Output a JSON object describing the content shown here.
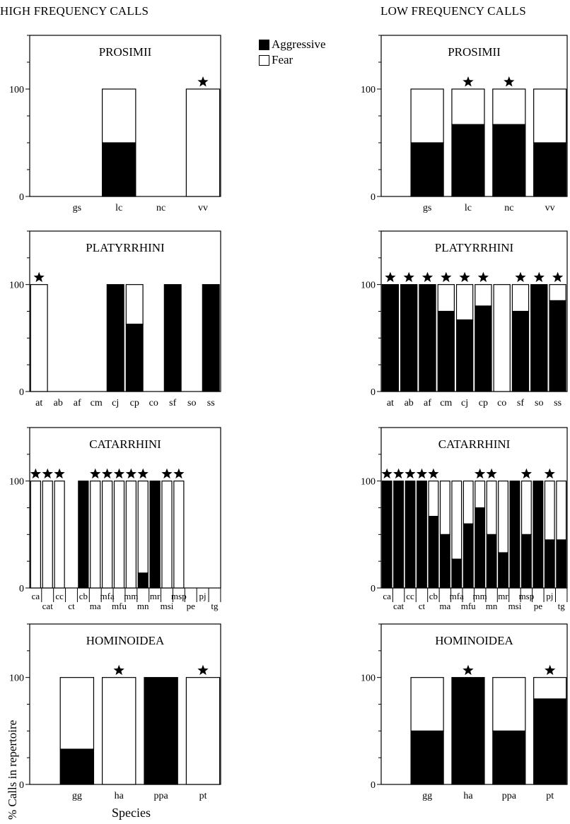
{
  "headers": {
    "high": "HIGH FREQUENCY CALLS",
    "low": "LOW FREQUENCY CALLS"
  },
  "legend": {
    "aggressive": "Aggressive",
    "fear": "Fear"
  },
  "axis": {
    "ylabel": "% Calls in repertoire",
    "xlabel": "Species"
  },
  "colors": {
    "aggressive": "#000000",
    "fear": "#ffffff",
    "stroke": "#000000"
  },
  "chart_data": [
    {
      "type": "bar",
      "stacked": true,
      "title": "PROSIMII",
      "column": "HIGH FREQUENCY CALLS",
      "categories": [
        "gs",
        "lc",
        "nc",
        "vv"
      ],
      "series": [
        {
          "name": "Aggressive",
          "values": [
            0,
            50,
            0,
            0
          ]
        },
        {
          "name": "Fear",
          "values": [
            0,
            50,
            0,
            100
          ]
        }
      ],
      "starred": [
        "vv"
      ],
      "yticks": [
        0,
        100
      ],
      "ylim": [
        0,
        150
      ]
    },
    {
      "type": "bar",
      "stacked": true,
      "title": "PROSIMII",
      "column": "LOW FREQUENCY CALLS",
      "categories": [
        "gs",
        "lc",
        "nc",
        "vv"
      ],
      "series": [
        {
          "name": "Aggressive",
          "values": [
            50,
            67,
            67,
            50
          ]
        },
        {
          "name": "Fear",
          "values": [
            50,
            33,
            33,
            50
          ]
        }
      ],
      "starred": [
        "lc",
        "nc"
      ],
      "yticks": [
        0,
        100
      ],
      "ylim": [
        0,
        150
      ]
    },
    {
      "type": "bar",
      "stacked": true,
      "title": "PLATYRRHINI",
      "column": "HIGH FREQUENCY CALLS",
      "categories": [
        "at",
        "ab",
        "af",
        "cm",
        "cj",
        "cp",
        "co",
        "sf",
        "so",
        "ss"
      ],
      "series": [
        {
          "name": "Aggressive",
          "values": [
            0,
            0,
            0,
            0,
            100,
            63,
            0,
            100,
            0,
            100
          ]
        },
        {
          "name": "Fear",
          "values": [
            100,
            0,
            0,
            0,
            0,
            37,
            0,
            0,
            0,
            0
          ]
        }
      ],
      "starred": [
        "at"
      ],
      "yticks": [
        0,
        100
      ],
      "ylim": [
        0,
        150
      ]
    },
    {
      "type": "bar",
      "stacked": true,
      "title": "PLATYRRHINI",
      "column": "LOW FREQUENCY CALLS",
      "categories": [
        "at",
        "ab",
        "af",
        "cm",
        "cj",
        "cp",
        "co",
        "sf",
        "so",
        "ss"
      ],
      "series": [
        {
          "name": "Aggressive",
          "values": [
            100,
            100,
            100,
            75,
            67,
            80,
            0,
            75,
            100,
            85
          ]
        },
        {
          "name": "Fear",
          "values": [
            0,
            0,
            0,
            25,
            33,
            20,
            100,
            25,
            0,
            15
          ]
        }
      ],
      "starred": [
        "at",
        "ab",
        "af",
        "cm",
        "cj",
        "cp",
        "sf",
        "so",
        "ss"
      ],
      "yticks": [
        0,
        100
      ],
      "ylim": [
        0,
        150
      ]
    },
    {
      "type": "bar",
      "stacked": true,
      "title": "CATARRHINI",
      "column": "HIGH FREQUENCY CALLS",
      "categories": [
        "ca",
        "cat",
        "cc",
        "ct",
        "cb",
        "ma",
        "mfa",
        "mfu",
        "mm",
        "mn",
        "mr",
        "msi",
        "msp",
        "pe",
        "pj",
        "tg"
      ],
      "series": [
        {
          "name": "Aggressive",
          "values": [
            0,
            0,
            0,
            0,
            100,
            0,
            0,
            0,
            0,
            14,
            100,
            0,
            0,
            0,
            0,
            0
          ]
        },
        {
          "name": "Fear",
          "values": [
            100,
            100,
            100,
            0,
            0,
            100,
            100,
            100,
            100,
            86,
            0,
            100,
            100,
            0,
            0,
            0
          ]
        }
      ],
      "starred": [
        "ca",
        "cat",
        "cc",
        "ma",
        "mfa",
        "mfu",
        "mm",
        "mn",
        "msi",
        "msp"
      ],
      "yticks": [
        0,
        100
      ],
      "ylim": [
        0,
        150
      ]
    },
    {
      "type": "bar",
      "stacked": true,
      "title": "CATARRHINI",
      "column": "LOW FREQUENCY CALLS",
      "categories": [
        "ca",
        "cat",
        "cc",
        "ct",
        "cb",
        "ma",
        "mfa",
        "mfu",
        "mm",
        "mn",
        "mr",
        "msi",
        "msp",
        "pe",
        "pj",
        "tg"
      ],
      "series": [
        {
          "name": "Aggressive",
          "values": [
            100,
            100,
            100,
            100,
            67,
            50,
            27,
            60,
            75,
            50,
            33,
            100,
            50,
            100,
            45,
            45
          ]
        },
        {
          "name": "Fear",
          "values": [
            0,
            0,
            0,
            0,
            33,
            50,
            73,
            40,
            25,
            50,
            67,
            0,
            50,
            0,
            55,
            55
          ]
        }
      ],
      "starred": [
        "ca",
        "cat",
        "cc",
        "ct",
        "cb",
        "mm",
        "mn",
        "msp",
        "pj"
      ],
      "yticks": [
        0,
        100
      ],
      "ylim": [
        0,
        150
      ]
    },
    {
      "type": "bar",
      "stacked": true,
      "title": "HOMINOIDEA",
      "column": "HIGH FREQUENCY CALLS",
      "categories": [
        "gg",
        "ha",
        "ppa",
        "pt"
      ],
      "series": [
        {
          "name": "Aggressive",
          "values": [
            33,
            0,
            100,
            0
          ]
        },
        {
          "name": "Fear",
          "values": [
            67,
            100,
            0,
            100
          ]
        }
      ],
      "starred": [
        "ha",
        "pt"
      ],
      "yticks": [
        0,
        100
      ],
      "ylim": [
        0,
        150
      ]
    },
    {
      "type": "bar",
      "stacked": true,
      "title": "HOMINOIDEA",
      "column": "LOW FREQUENCY CALLS",
      "categories": [
        "gg",
        "ha",
        "ppa",
        "pt"
      ],
      "series": [
        {
          "name": "Aggressive",
          "values": [
            50,
            100,
            50,
            80
          ]
        },
        {
          "name": "Fear",
          "values": [
            50,
            0,
            50,
            20
          ]
        }
      ],
      "starred": [
        "ha",
        "pt"
      ],
      "yticks": [
        0,
        100
      ],
      "ylim": [
        0,
        150
      ]
    }
  ]
}
